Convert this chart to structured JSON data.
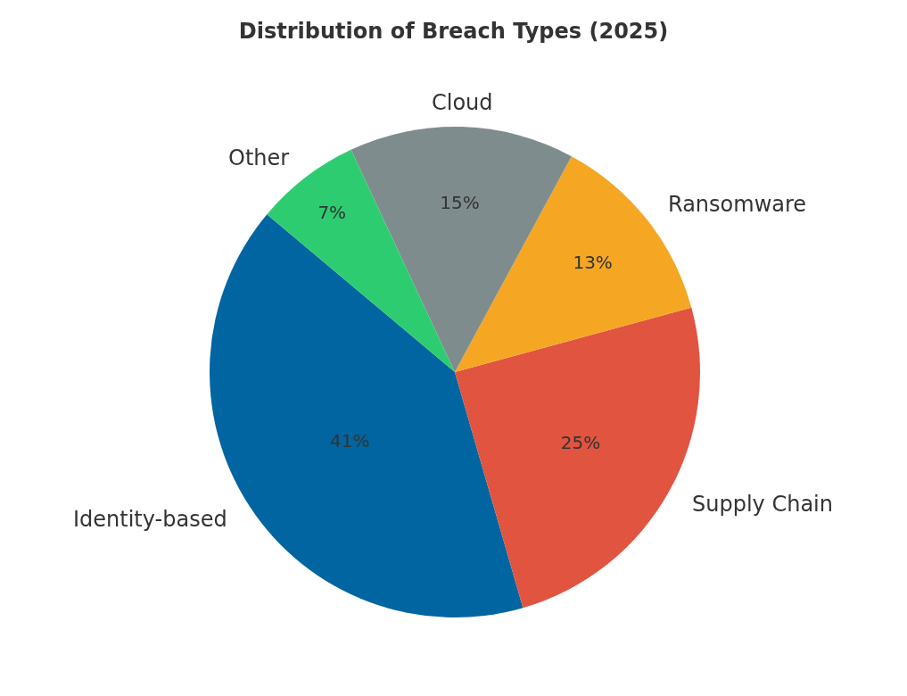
{
  "chart_data": {
    "type": "pie",
    "title": "Distribution of Breach Types (2025)",
    "categories": [
      "Identity-based",
      "Supply Chain",
      "Ransomware",
      "Cloud",
      "Other"
    ],
    "values": [
      41,
      25,
      13,
      15,
      7
    ],
    "colors": [
      "#0065a0",
      "#e05440",
      "#f5a623",
      "#7f8c8d",
      "#2ecc71"
    ],
    "value_labels": [
      "41%",
      "25%",
      "13%",
      "15%",
      "7%"
    ],
    "legend": false
  }
}
